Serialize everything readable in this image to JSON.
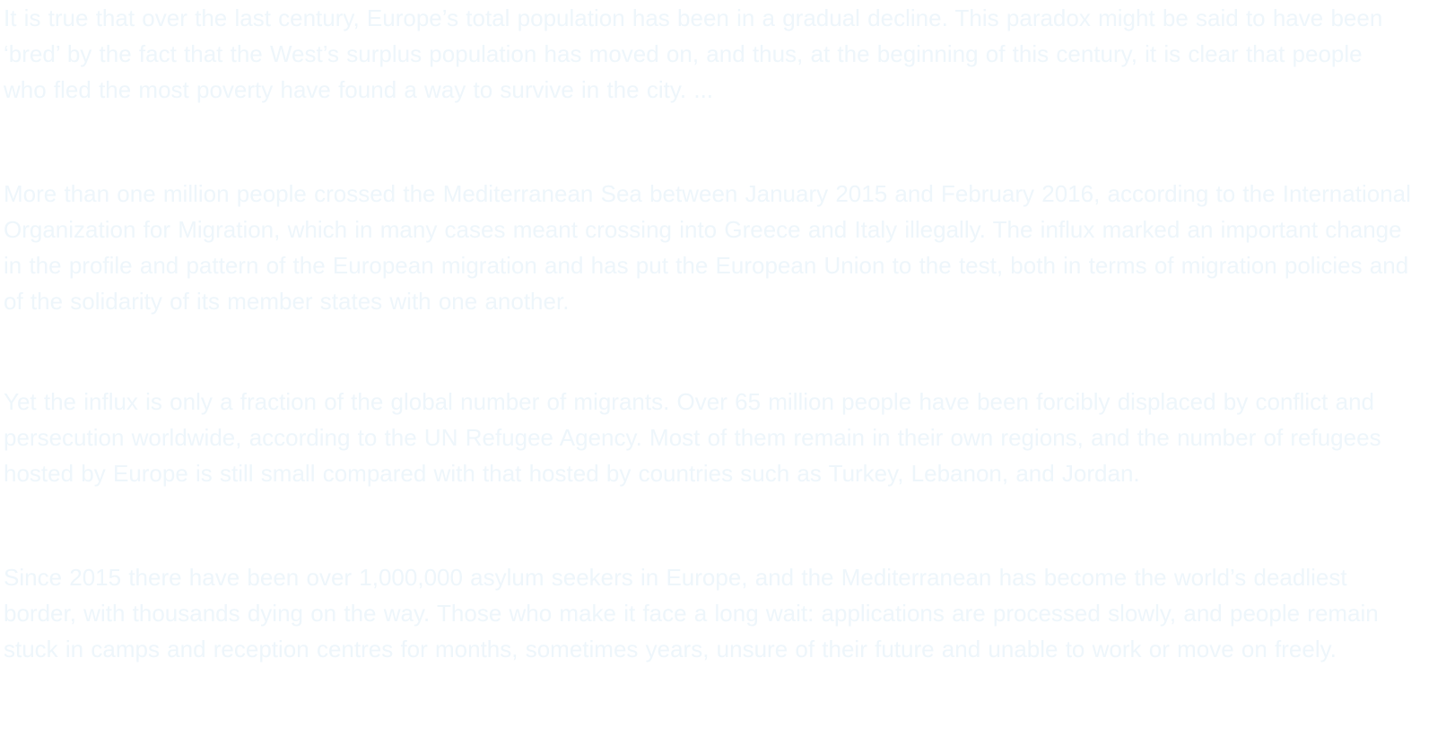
{
  "article": {
    "paragraphs": [
      "It is true that over the last century, Europe’s total population has been in a gradual decline. This paradox might be said to have been ‘bred’ by the fact that the West’s surplus population has moved on, and thus, at the beginning of this century, it is clear that people who fled the most poverty have found a way to survive in the city. ...",
      "More than one million people crossed the Mediterranean Sea between January 2015 and February 2016, according to the International Organization for Migration, which in many cases meant crossing into Greece and Italy illegally. The influx marked an important change in the profile and pattern of the European migration and has put the European Union to the test, both in terms of migration policies and of the solidarity of its member states with one another.",
      "Yet the influx is only a fraction of the global number of migrants. Over 65 million people have been forcibly displaced by conflict and persecution worldwide, according to the UN Refugee Agency. Most of them remain in their own regions, and the number of refugees hosted by Europe is still small compared with that hosted by countries such as Turkey, Lebanon, and Jordan.",
      "Since 2015 there have been over 1,000,000 asylum seekers in Europe, and the Mediterranean has become the world’s deadliest border, with thousands dying on the way. Those who make it face a long wait: applications are processed slowly, and people remain stuck in camps and reception centres for months, sometimes years, unsure of their future and unable to work or move on freely."
    ]
  }
}
